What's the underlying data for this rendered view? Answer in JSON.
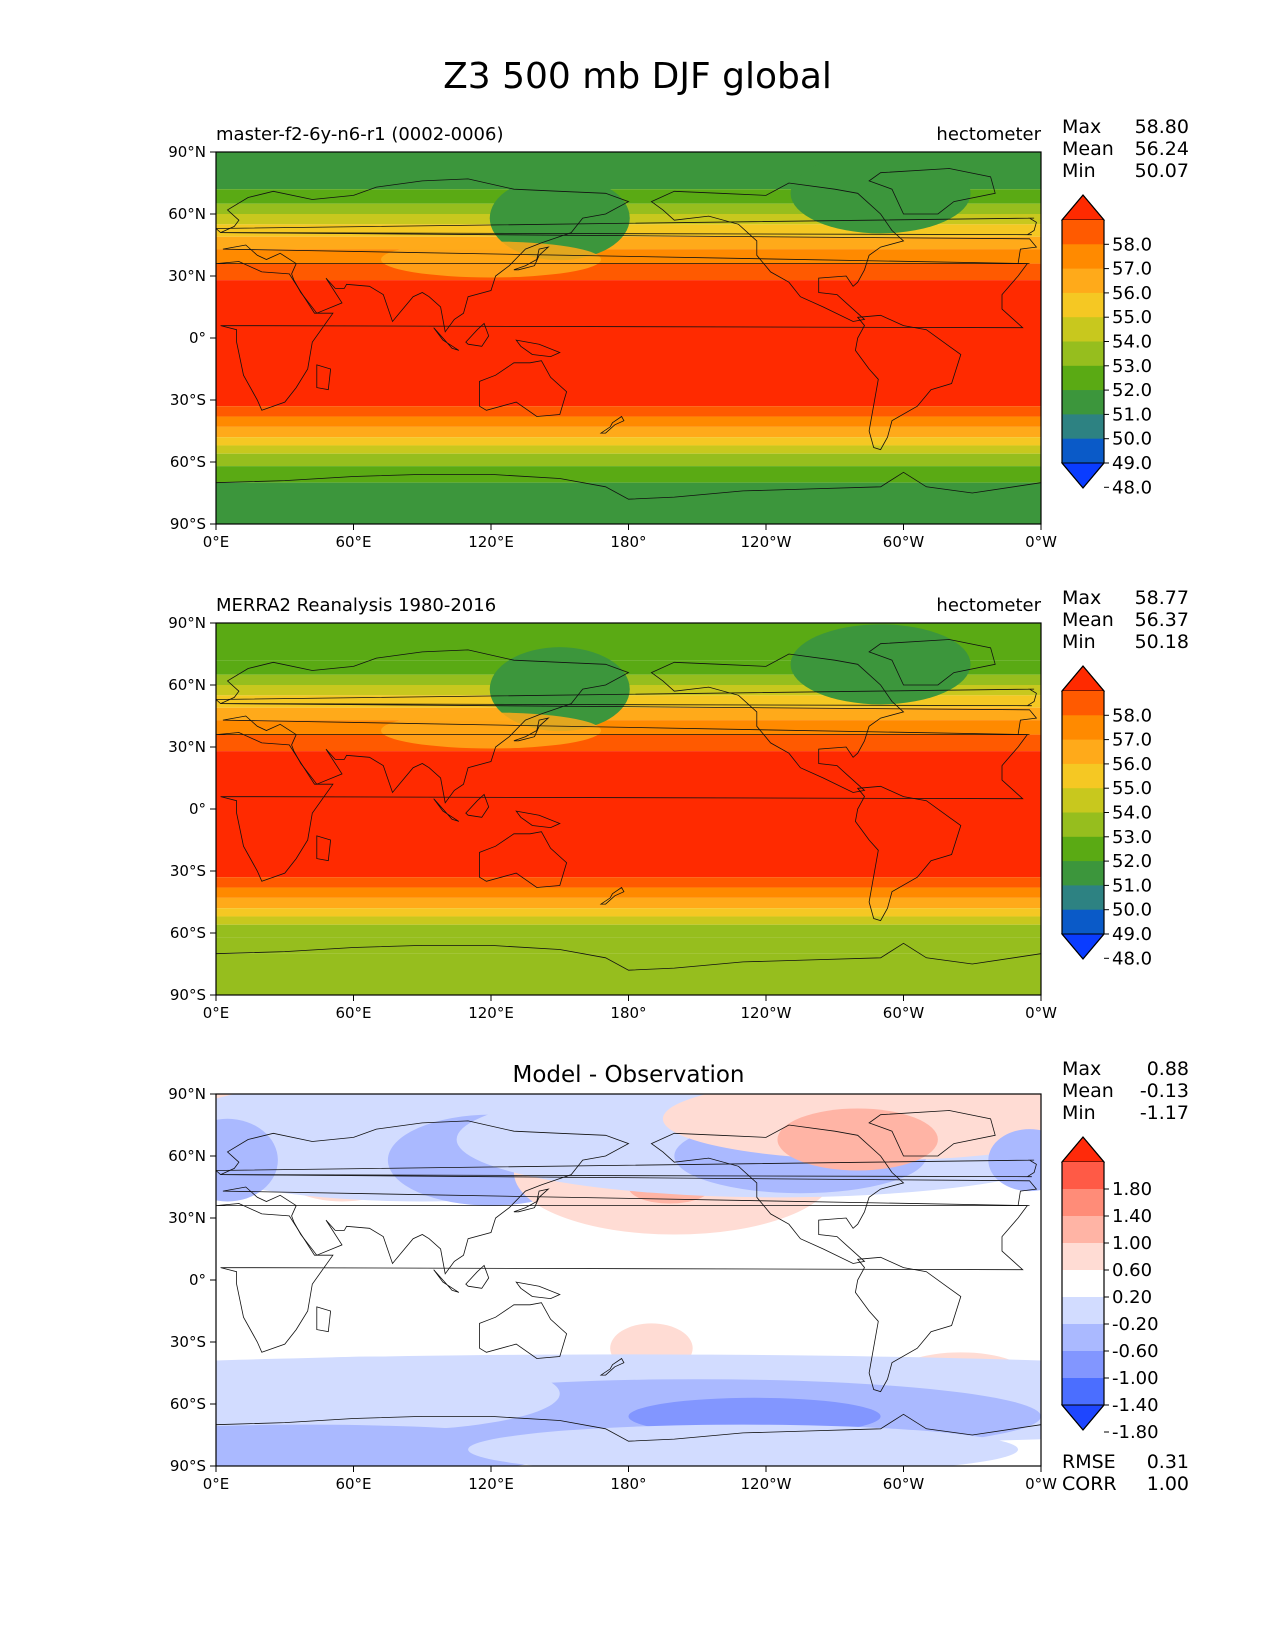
{
  "figure": {
    "title": "Z3 500 mb DJF global"
  },
  "axes": {
    "x_ticks": [
      "0°E",
      "60°E",
      "120°E",
      "180°",
      "120°W",
      "60°W",
      "0°W"
    ],
    "y_ticks": [
      "90°N",
      "60°N",
      "30°N",
      "0°",
      "30°S",
      "60°S",
      "90°S"
    ]
  },
  "chart_data": [
    {
      "type": "heatmap",
      "title_left": "master-f2-6y-n6-r1 (0002-0006)",
      "title_center": "",
      "units": "hectometer",
      "stats": [
        {
          "label": "Max",
          "value": "58.80"
        },
        {
          "label": "Mean",
          "value": "56.24"
        },
        {
          "label": "Min",
          "value": "50.07"
        }
      ],
      "xlim": [
        0,
        360
      ],
      "ylim": [
        -90,
        90
      ],
      "colorbar": {
        "levels": [
          "58.0",
          "57.0",
          "56.0",
          "55.0",
          "54.0",
          "53.0",
          "52.0",
          "51.0",
          "50.0",
          "49.0",
          "48.0"
        ],
        "colors": [
          "#ff2a00",
          "#ff5a00",
          "#ff8a00",
          "#ffaa1a",
          "#f5c823",
          "#c8c81e",
          "#96be1e",
          "#5aaa14",
          "#3c963c",
          "#2d8282",
          "#0a5ac8",
          "#0a3cff"
        ]
      }
    },
    {
      "type": "heatmap",
      "title_left": "MERRA2 Reanalysis 1980-2016",
      "title_center": "",
      "units": "hectometer",
      "stats": [
        {
          "label": "Max",
          "value": "58.77"
        },
        {
          "label": "Mean",
          "value": "56.37"
        },
        {
          "label": "Min",
          "value": "50.18"
        }
      ],
      "xlim": [
        0,
        360
      ],
      "ylim": [
        -90,
        90
      ],
      "colorbar": {
        "levels": [
          "58.0",
          "57.0",
          "56.0",
          "55.0",
          "54.0",
          "53.0",
          "52.0",
          "51.0",
          "50.0",
          "49.0",
          "48.0"
        ],
        "colors": [
          "#ff2a00",
          "#ff5a00",
          "#ff8a00",
          "#ffaa1a",
          "#f5c823",
          "#c8c81e",
          "#96be1e",
          "#5aaa14",
          "#3c963c",
          "#2d8282",
          "#0a5ac8",
          "#0a3cff"
        ]
      }
    },
    {
      "type": "heatmap",
      "title_left": "",
      "title_center": "Model - Observation",
      "units": "",
      "stats": [
        {
          "label": "Max",
          "value": "0.88"
        },
        {
          "label": "Mean",
          "value": "-0.13"
        },
        {
          "label": "Min",
          "value": "-1.17"
        }
      ],
      "extra_stats": [
        {
          "label": "RMSE",
          "value": "0.31"
        },
        {
          "label": "CORR",
          "value": "1.00"
        }
      ],
      "xlim": [
        0,
        360
      ],
      "ylim": [
        -90,
        90
      ],
      "colorbar": {
        "levels": [
          "1.80",
          "1.40",
          "1.00",
          "0.60",
          "0.20",
          "-0.20",
          "-0.60",
          "-1.00",
          "-1.40",
          "-1.80"
        ],
        "colors": [
          "#ff2a0a",
          "#ff5a46",
          "#ff8c78",
          "#ffb4a5",
          "#ffdcd4",
          "#ffffff",
          "#d2dcff",
          "#aab9ff",
          "#8296ff",
          "#4b6eff",
          "#1e46ff"
        ]
      }
    }
  ]
}
